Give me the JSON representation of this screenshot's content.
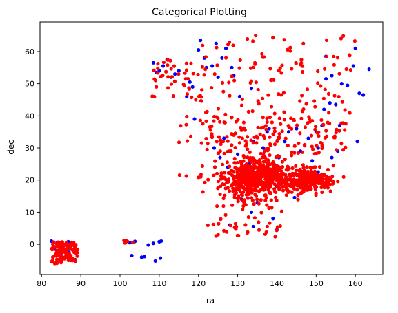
{
  "colors": {
    "series_blue": "#0000ff",
    "series_red": "#ff0000",
    "axes": "#000000",
    "background": "#ffffff"
  },
  "chart_data": {
    "type": "scatter",
    "title": "Categorical Plotting",
    "xlabel": "ra",
    "ylabel": "dec",
    "xlim": [
      79.6,
      167.0
    ],
    "ylim": [
      -9.4,
      69.2
    ],
    "xticks": [
      80,
      90,
      100,
      110,
      120,
      130,
      140,
      150,
      160
    ],
    "yticks": [
      0,
      10,
      20,
      30,
      40,
      50,
      60
    ],
    "grid": false,
    "legend": "none",
    "series": [
      {
        "color": "blue",
        "points": [
          [
            82.5,
            1.0
          ],
          [
            83.2,
            -1.5
          ],
          [
            84.0,
            0.5
          ],
          [
            85.1,
            -4.0
          ],
          [
            86.3,
            0.0
          ],
          [
            87.0,
            -2.5
          ],
          [
            88.6,
            -4.8
          ],
          [
            83.8,
            -5.6
          ],
          [
            85.6,
            -2.0
          ],
          [
            86.8,
            0.8
          ],
          [
            84.5,
            -3.2
          ],
          [
            87.5,
            -5.0
          ],
          [
            102.5,
            0.5
          ],
          [
            103.0,
            -3.5
          ],
          [
            103.8,
            0.9
          ],
          [
            105.5,
            -4.0
          ],
          [
            106.2,
            -3.8
          ],
          [
            107.2,
            -0.2
          ],
          [
            108.5,
            0.3
          ],
          [
            109.0,
            -5.2
          ],
          [
            110.0,
            0.8
          ],
          [
            110.5,
            1.0
          ],
          [
            110.3,
            -4.3
          ],
          [
            108.5,
            56.5
          ],
          [
            109.3,
            53.5
          ],
          [
            110.0,
            54.0
          ],
          [
            111.0,
            55.5
          ],
          [
            112.0,
            57.5
          ],
          [
            113.0,
            52.0
          ],
          [
            114.0,
            53.0
          ],
          [
            115.0,
            54.0
          ],
          [
            117.0,
            46.0
          ],
          [
            117.8,
            50.5
          ],
          [
            118.5,
            49.0
          ],
          [
            119.0,
            39.0
          ],
          [
            120.0,
            60.5
          ],
          [
            120.5,
            63.5
          ],
          [
            121.5,
            58.0
          ],
          [
            122.0,
            55.0
          ],
          [
            123.5,
            55.5
          ],
          [
            124.5,
            62.5
          ],
          [
            125.0,
            52.0
          ],
          [
            126.0,
            58.0
          ],
          [
            127.0,
            61.0
          ],
          [
            128.5,
            55.0
          ],
          [
            129.0,
            52.5
          ],
          [
            124.0,
            30.0
          ],
          [
            125.5,
            27.0
          ],
          [
            126.5,
            33.0
          ],
          [
            127.5,
            24.0
          ],
          [
            128.0,
            6.0
          ],
          [
            129.5,
            17.0
          ],
          [
            130.0,
            28.0
          ],
          [
            131.0,
            14.0
          ],
          [
            132.0,
            20.0
          ],
          [
            133.0,
            25.0
          ],
          [
            133.5,
            10.0
          ],
          [
            134.0,
            5.5
          ],
          [
            135.0,
            13.0
          ],
          [
            136.0,
            22.0
          ],
          [
            136.5,
            30.0
          ],
          [
            137.5,
            35.0
          ],
          [
            138.0,
            36.0
          ],
          [
            139.0,
            8.0
          ],
          [
            140.0,
            4.5
          ],
          [
            140.5,
            27.0
          ],
          [
            141.5,
            20.0
          ],
          [
            142.0,
            32.0
          ],
          [
            143.0,
            35.0
          ],
          [
            144.0,
            22.0
          ],
          [
            145.0,
            36.0
          ],
          [
            146.0,
            29.0
          ],
          [
            147.0,
            18.0
          ],
          [
            148.0,
            33.0
          ],
          [
            149.0,
            26.0
          ],
          [
            150.0,
            35.0
          ],
          [
            150.5,
            30.0
          ],
          [
            151.5,
            37.0
          ],
          [
            152.0,
            42.0
          ],
          [
            152.5,
            51.5
          ],
          [
            153.5,
            44.0
          ],
          [
            154.0,
            52.5
          ],
          [
            155.0,
            43.5
          ],
          [
            155.5,
            29.0
          ],
          [
            156.0,
            37.0
          ],
          [
            156.5,
            50.0
          ],
          [
            158.0,
            49.5
          ],
          [
            159.5,
            55.5
          ],
          [
            160.0,
            61.0
          ],
          [
            161.0,
            47.0
          ],
          [
            162.0,
            46.5
          ],
          [
            163.5,
            54.5
          ],
          [
            160.5,
            32.0
          ],
          [
            152.5,
            58.5
          ],
          [
            154.0,
            27.0
          ],
          [
            131.0,
            36.0
          ],
          [
            130.5,
            46.0
          ],
          [
            134.0,
            32.0
          ],
          [
            140.0,
            18.0
          ],
          [
            150.5,
            22.5
          ],
          [
            144.5,
            14.5
          ],
          [
            133.5,
            48.5
          ]
        ]
      },
      {
        "color": "red",
        "points": []
      }
    ]
  }
}
